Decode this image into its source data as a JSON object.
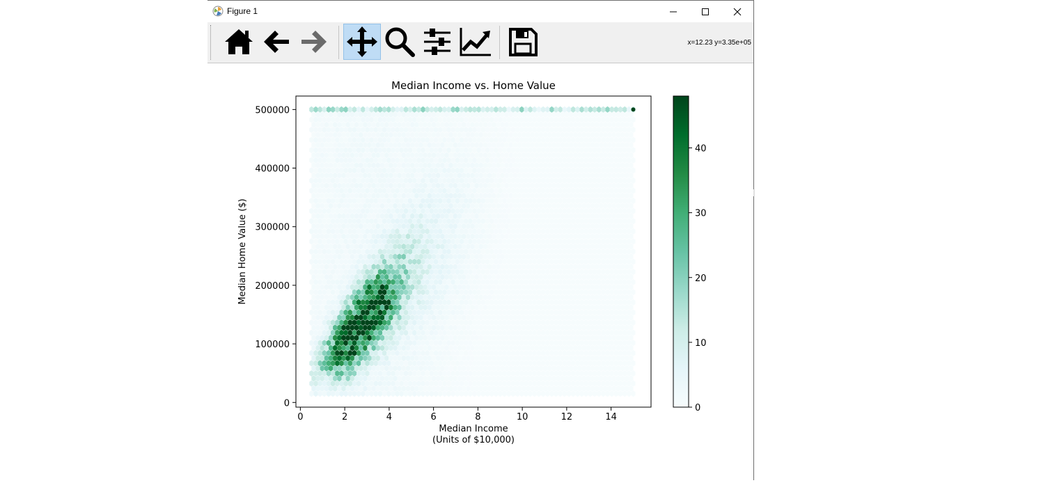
{
  "window": {
    "title": "Figure 1",
    "controls": {
      "minimize": "minimize-icon",
      "maximize": "maximize-icon",
      "close": "close-icon"
    }
  },
  "toolbar": {
    "buttons": [
      {
        "name": "home",
        "icon": "home-icon",
        "active": false
      },
      {
        "name": "back",
        "icon": "arrow-left-icon",
        "active": false
      },
      {
        "name": "forward",
        "icon": "arrow-right-icon",
        "active": false
      },
      {
        "name": "pan",
        "icon": "move-icon",
        "active": true
      },
      {
        "name": "zoom",
        "icon": "magnifier-icon",
        "active": false
      },
      {
        "name": "configure-subplots",
        "icon": "sliders-icon",
        "active": false
      },
      {
        "name": "edit-axis",
        "icon": "line-chart-icon",
        "active": false
      },
      {
        "name": "save",
        "icon": "floppy-disk-icon",
        "active": false
      }
    ],
    "coordinates": "x=12.23 y=3.35e+05"
  },
  "chart_data": {
    "type": "heatmap",
    "subtype": "hexbin",
    "title": "Median Income vs. Home Value",
    "xlabel_line1": "Median Income",
    "xlabel_line2": "(Units of $10,000)",
    "ylabel": "Median Home Value ($)",
    "xlim": [
      -0.2,
      15.8
    ],
    "ylim": [
      -8000,
      523000
    ],
    "xticks": [
      0,
      2,
      4,
      6,
      8,
      10,
      12,
      14
    ],
    "xtick_labels": [
      "0",
      "2",
      "4",
      "6",
      "8",
      "10",
      "12",
      "14"
    ],
    "yticks": [
      0,
      100000,
      200000,
      300000,
      400000,
      500000
    ],
    "ytick_labels": [
      "0",
      "100000",
      "200000",
      "300000",
      "400000",
      "500000"
    ],
    "data_extent": {
      "x": [
        0.5,
        15.0
      ],
      "y": [
        15000,
        500001
      ]
    },
    "colormap": "BuGn",
    "colorbar": {
      "range": [
        0,
        48
      ],
      "ticks": [
        0,
        10,
        20,
        30,
        40
      ],
      "tick_labels": [
        "0",
        "10",
        "20",
        "30",
        "40"
      ]
    },
    "density_regions": [
      {
        "x_center": 2.5,
        "y_center": 110000,
        "peak_count": 40
      },
      {
        "x_center": 3.5,
        "y_center": 165000,
        "peak_count": 36
      },
      {
        "x_center": 2.0,
        "y_center": 60000,
        "peak_count": 32
      },
      {
        "x_center": 15.0,
        "y_center": 500001,
        "peak_count": 48
      }
    ],
    "cap_line": {
      "y": 500001,
      "x_range": [
        0.5,
        15.0
      ],
      "typical_count": 18
    },
    "grid": false,
    "legend": "none"
  },
  "colors": {
    "accent_active": "#bfdcf5",
    "cmap_low": "#f7fcfd",
    "cmap_high": "#00441b"
  }
}
